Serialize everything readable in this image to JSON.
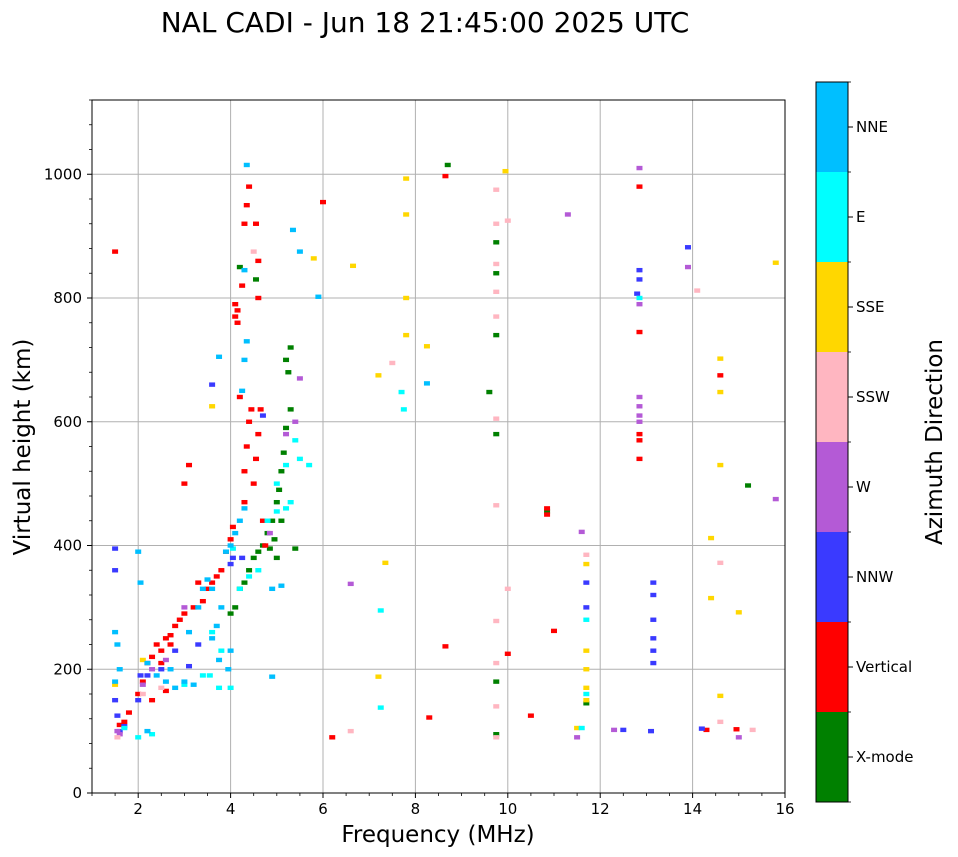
{
  "chart_data": {
    "type": "scatter",
    "title": "NAL CADI - Jun 18 21:45:00 2025 UTC",
    "xlabel": "Frequency (MHz)",
    "ylabel": "Virtual height (km)",
    "xlim": [
      1,
      16
    ],
    "ylim": [
      0,
      1120
    ],
    "xticks": [
      2,
      4,
      6,
      8,
      10,
      12,
      14,
      16
    ],
    "yticks": [
      0,
      200,
      400,
      600,
      800,
      1000
    ],
    "grid": true,
    "colorbar": {
      "label": "Azimuth Direction",
      "entries": [
        {
          "name": "X-mode",
          "color": "#008000"
        },
        {
          "name": "Vertical",
          "color": "#ff0000"
        },
        {
          "name": "NNW",
          "color": "#3a3aff"
        },
        {
          "name": "W",
          "color": "#b45ad6"
        },
        {
          "name": "SSW",
          "color": "#ffb6c1"
        },
        {
          "name": "SSE",
          "color": "#ffd700"
        },
        {
          "name": "E",
          "color": "#00ffff"
        },
        {
          "name": "NNE",
          "color": "#00bfff"
        }
      ]
    },
    "series": [
      {
        "name": "X-mode",
        "color": "#008000",
        "points": [
          [
            4.5,
            380
          ],
          [
            4.6,
            390
          ],
          [
            4.7,
            400
          ],
          [
            4.8,
            420
          ],
          [
            4.9,
            440
          ],
          [
            5.0,
            470
          ],
          [
            5.05,
            490
          ],
          [
            5.1,
            520
          ],
          [
            5.15,
            550
          ],
          [
            5.2,
            590
          ],
          [
            4.4,
            360
          ],
          [
            4.3,
            340
          ],
          [
            4.2,
            330
          ],
          [
            4.1,
            300
          ],
          [
            4.0,
            290
          ],
          [
            5.3,
            620
          ],
          [
            5.25,
            680
          ],
          [
            5.3,
            720
          ],
          [
            5.0,
            380
          ],
          [
            5.4,
            395
          ],
          [
            8.7,
            1015
          ],
          [
            9.6,
            648
          ],
          [
            9.75,
            580
          ],
          [
            9.75,
            180
          ],
          [
            9.75,
            95
          ],
          [
            9.75,
            740
          ],
          [
            9.75,
            840
          ],
          [
            9.75,
            890
          ],
          [
            15.2,
            497
          ],
          [
            10.85,
            455
          ],
          [
            11.7,
            145
          ],
          [
            5.1,
            440
          ],
          [
            4.95,
            410
          ],
          [
            4.85,
            395
          ],
          [
            4.2,
            850
          ],
          [
            4.55,
            830
          ],
          [
            5.2,
            700
          ]
        ]
      },
      {
        "name": "Vertical",
        "color": "#ff0000",
        "points": [
          [
            1.5,
            875
          ],
          [
            1.6,
            110
          ],
          [
            1.7,
            115
          ],
          [
            1.8,
            130
          ],
          [
            2.0,
            160
          ],
          [
            2.1,
            180
          ],
          [
            2.2,
            210
          ],
          [
            2.3,
            220
          ],
          [
            2.4,
            240
          ],
          [
            2.5,
            230
          ],
          [
            2.6,
            250
          ],
          [
            2.7,
            255
          ],
          [
            2.8,
            270
          ],
          [
            2.9,
            280
          ],
          [
            3.0,
            290
          ],
          [
            3.2,
            300
          ],
          [
            3.4,
            310
          ],
          [
            3.5,
            330
          ],
          [
            3.6,
            340
          ],
          [
            3.7,
            350
          ],
          [
            3.8,
            360
          ],
          [
            3.9,
            390
          ],
          [
            4.0,
            410
          ],
          [
            4.05,
            430
          ],
          [
            4.1,
            770
          ],
          [
            4.1,
            790
          ],
          [
            4.15,
            760
          ],
          [
            4.2,
            640
          ],
          [
            4.25,
            820
          ],
          [
            4.3,
            520
          ],
          [
            4.3,
            470
          ],
          [
            4.35,
            560
          ],
          [
            4.4,
            600
          ],
          [
            4.45,
            620
          ],
          [
            4.5,
            500
          ],
          [
            4.55,
            540
          ],
          [
            4.6,
            580
          ],
          [
            4.65,
            620
          ],
          [
            4.7,
            440
          ],
          [
            4.75,
            400
          ],
          [
            4.3,
            920
          ],
          [
            4.35,
            950
          ],
          [
            4.4,
            980
          ],
          [
            4.55,
            920
          ],
          [
            4.6,
            800
          ],
          [
            3.0,
            500
          ],
          [
            3.1,
            530
          ],
          [
            2.5,
            210
          ],
          [
            2.7,
            240
          ],
          [
            8.3,
            122
          ],
          [
            8.65,
            237
          ],
          [
            8.65,
            997
          ],
          [
            10.0,
            225
          ],
          [
            10.5,
            125
          ],
          [
            10.85,
            450
          ],
          [
            10.85,
            460
          ],
          [
            11.0,
            262
          ],
          [
            12.85,
            980
          ],
          [
            12.85,
            745
          ],
          [
            12.85,
            540
          ],
          [
            12.85,
            580
          ],
          [
            12.85,
            570
          ],
          [
            14.3,
            102
          ],
          [
            14.6,
            675
          ],
          [
            14.95,
            103
          ],
          [
            6.0,
            955
          ],
          [
            6.2,
            90
          ],
          [
            2.3,
            150
          ],
          [
            2.6,
            165
          ],
          [
            3.3,
            340
          ],
          [
            4.15,
            780
          ],
          [
            4.6,
            860
          ]
        ]
      },
      {
        "name": "NNW",
        "color": "#3a3aff",
        "points": [
          [
            1.5,
            395
          ],
          [
            1.5,
            360
          ],
          [
            1.5,
            150
          ],
          [
            1.55,
            125
          ],
          [
            1.6,
            100
          ],
          [
            1.7,
            108
          ],
          [
            2.0,
            150
          ],
          [
            2.2,
            190
          ],
          [
            2.5,
            200
          ],
          [
            2.8,
            230
          ],
          [
            3.1,
            205
          ],
          [
            3.3,
            240
          ],
          [
            4.0,
            370
          ],
          [
            4.05,
            380
          ],
          [
            11.7,
            300
          ],
          [
            11.7,
            340
          ],
          [
            12.8,
            807
          ],
          [
            12.85,
            830
          ],
          [
            12.85,
            845
          ],
          [
            13.15,
            340
          ],
          [
            13.15,
            320
          ],
          [
            13.15,
            280
          ],
          [
            13.15,
            250
          ],
          [
            13.15,
            230
          ],
          [
            13.15,
            210
          ],
          [
            12.5,
            102
          ],
          [
            13.1,
            100
          ],
          [
            13.9,
            882
          ],
          [
            14.2,
            104
          ],
          [
            4.7,
            610
          ],
          [
            4.25,
            380
          ],
          [
            2.05,
            190
          ],
          [
            3.6,
            660
          ]
        ]
      },
      {
        "name": "W",
        "color": "#b45ad6",
        "points": [
          [
            1.55,
            100
          ],
          [
            1.6,
            95
          ],
          [
            2.1,
            175
          ],
          [
            2.3,
            200
          ],
          [
            2.6,
            215
          ],
          [
            3.0,
            300
          ],
          [
            5.2,
            580
          ],
          [
            5.4,
            600
          ],
          [
            5.5,
            670
          ],
          [
            6.6,
            338
          ],
          [
            11.3,
            935
          ],
          [
            11.6,
            422
          ],
          [
            11.5,
            90
          ],
          [
            12.85,
            1010
          ],
          [
            12.85,
            790
          ],
          [
            12.85,
            640
          ],
          [
            12.85,
            625
          ],
          [
            12.85,
            610
          ],
          [
            12.85,
            600
          ],
          [
            13.9,
            850
          ],
          [
            12.3,
            102
          ],
          [
            15.0,
            90
          ],
          [
            15.8,
            475
          ],
          [
            4.85,
            420
          ]
        ]
      },
      {
        "name": "SSW",
        "color": "#ffb6c1",
        "points": [
          [
            1.55,
            90
          ],
          [
            2.1,
            160
          ],
          [
            2.5,
            170
          ],
          [
            6.6,
            100
          ],
          [
            7.5,
            695
          ],
          [
            9.75,
            975
          ],
          [
            9.75,
            920
          ],
          [
            9.75,
            855
          ],
          [
            9.75,
            810
          ],
          [
            9.75,
            770
          ],
          [
            9.75,
            605
          ],
          [
            9.75,
            465
          ],
          [
            9.75,
            278
          ],
          [
            9.75,
            210
          ],
          [
            9.75,
            140
          ],
          [
            9.75,
            90
          ],
          [
            10.0,
            925
          ],
          [
            10.0,
            330
          ],
          [
            11.7,
            385
          ],
          [
            14.1,
            812
          ],
          [
            14.6,
            372
          ],
          [
            14.6,
            115
          ],
          [
            15.3,
            102
          ],
          [
            4.5,
            875
          ]
        ]
      },
      {
        "name": "SSE",
        "color": "#ffd700",
        "points": [
          [
            7.8,
            993
          ],
          [
            7.8,
            935
          ],
          [
            7.8,
            800
          ],
          [
            7.8,
            740
          ],
          [
            8.25,
            722
          ],
          [
            6.65,
            852
          ],
          [
            7.2,
            675
          ],
          [
            7.2,
            188
          ],
          [
            7.35,
            372
          ],
          [
            9.95,
            1005
          ],
          [
            11.7,
            370
          ],
          [
            11.7,
            230
          ],
          [
            11.7,
            200
          ],
          [
            11.7,
            170
          ],
          [
            11.7,
            150
          ],
          [
            11.5,
            105
          ],
          [
            14.6,
            702
          ],
          [
            14.6,
            648
          ],
          [
            14.6,
            530
          ],
          [
            14.4,
            412
          ],
          [
            14.4,
            315
          ],
          [
            14.6,
            157
          ],
          [
            15.0,
            292
          ],
          [
            15.8,
            857
          ],
          [
            5.8,
            864
          ],
          [
            3.6,
            625
          ],
          [
            2.1,
            215
          ],
          [
            1.5,
            175
          ]
        ]
      },
      {
        "name": "E",
        "color": "#00ffff",
        "points": [
          [
            1.7,
            105
          ],
          [
            2.0,
            90
          ],
          [
            2.3,
            95
          ],
          [
            3.0,
            175
          ],
          [
            3.4,
            190
          ],
          [
            3.6,
            260
          ],
          [
            3.8,
            230
          ],
          [
            4.0,
            170
          ],
          [
            4.2,
            330
          ],
          [
            4.4,
            350
          ],
          [
            4.6,
            360
          ],
          [
            5.0,
            500
          ],
          [
            5.2,
            530
          ],
          [
            5.5,
            540
          ],
          [
            5.7,
            530
          ],
          [
            5.4,
            570
          ],
          [
            5.3,
            470
          ],
          [
            5.2,
            460
          ],
          [
            4.8,
            440
          ],
          [
            5.0,
            455
          ],
          [
            7.25,
            295
          ],
          [
            7.25,
            138
          ],
          [
            7.7,
            648
          ],
          [
            7.75,
            620
          ],
          [
            11.7,
            280
          ],
          [
            11.7,
            160
          ],
          [
            11.6,
            105
          ],
          [
            12.85,
            800
          ],
          [
            4.05,
            395
          ],
          [
            3.55,
            190
          ],
          [
            3.75,
            170
          ]
        ]
      },
      {
        "name": "NNE",
        "color": "#00bfff",
        "points": [
          [
            1.5,
            260
          ],
          [
            1.55,
            240
          ],
          [
            1.6,
            200
          ],
          [
            1.5,
            180
          ],
          [
            2.0,
            390
          ],
          [
            2.05,
            340
          ],
          [
            2.2,
            210
          ],
          [
            2.4,
            190
          ],
          [
            2.6,
            180
          ],
          [
            2.8,
            170
          ],
          [
            3.0,
            180
          ],
          [
            3.2,
            175
          ],
          [
            3.4,
            330
          ],
          [
            3.5,
            345
          ],
          [
            3.6,
            330
          ],
          [
            3.8,
            300
          ],
          [
            3.7,
            270
          ],
          [
            3.6,
            250
          ],
          [
            3.9,
            390
          ],
          [
            4.0,
            400
          ],
          [
            4.1,
            420
          ],
          [
            4.2,
            440
          ],
          [
            4.3,
            460
          ],
          [
            4.0,
            230
          ],
          [
            3.75,
            215
          ],
          [
            3.95,
            200
          ],
          [
            4.9,
            188
          ],
          [
            4.25,
            650
          ],
          [
            4.3,
            700
          ],
          [
            4.35,
            730
          ],
          [
            4.35,
            1015
          ],
          [
            5.5,
            875
          ],
          [
            5.35,
            910
          ],
          [
            5.9,
            802
          ],
          [
            8.25,
            662
          ],
          [
            3.1,
            260
          ],
          [
            3.3,
            300
          ],
          [
            2.7,
            200
          ],
          [
            3.75,
            705
          ],
          [
            5.1,
            335
          ],
          [
            4.9,
            330
          ],
          [
            4.3,
            845
          ],
          [
            2.2,
            100
          ]
        ]
      }
    ]
  }
}
